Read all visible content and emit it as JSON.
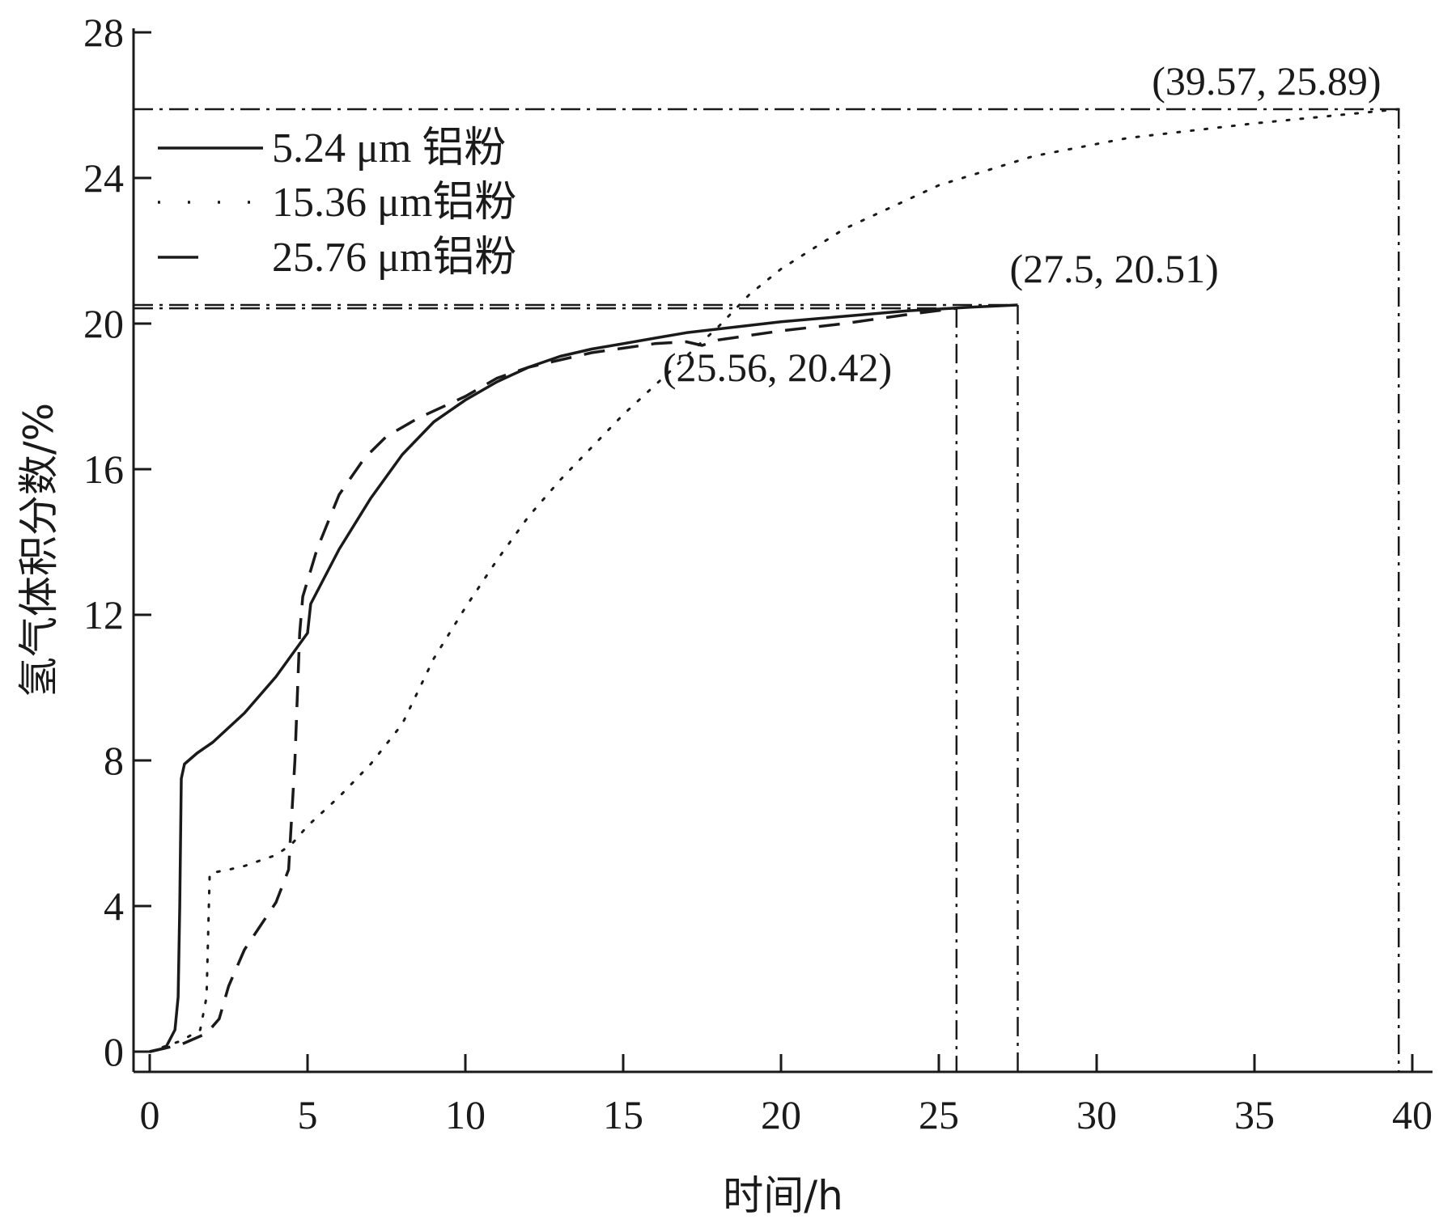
{
  "chart_data": {
    "type": "line",
    "xlabel": "时间/h",
    "ylabel": "氢气体积分数/%",
    "xlim": [
      0,
      40
    ],
    "ylim": [
      0,
      28
    ],
    "xticks": [
      0,
      5,
      10,
      15,
      20,
      25,
      30,
      35,
      40
    ],
    "yticks": [
      0,
      4,
      8,
      12,
      16,
      20,
      24,
      28
    ],
    "grid": false,
    "legend_position": "top-left",
    "series": [
      {
        "name": "5.24 μm 铝粉",
        "style": "solid",
        "points": [
          [
            0,
            0
          ],
          [
            0.5,
            0.1
          ],
          [
            0.8,
            0.6
          ],
          [
            0.9,
            1.5
          ],
          [
            0.95,
            4
          ],
          [
            1.0,
            7.5
          ],
          [
            1.1,
            7.9
          ],
          [
            1.5,
            8.2
          ],
          [
            2,
            8.5
          ],
          [
            3,
            9.3
          ],
          [
            4,
            10.3
          ],
          [
            5,
            11.5
          ],
          [
            5.1,
            12.3
          ],
          [
            6,
            13.8
          ],
          [
            7,
            15.2
          ],
          [
            8,
            16.4
          ],
          [
            9,
            17.3
          ],
          [
            10,
            17.9
          ],
          [
            11,
            18.4
          ],
          [
            12,
            18.8
          ],
          [
            13,
            19.1
          ],
          [
            14,
            19.3
          ],
          [
            15,
            19.45
          ],
          [
            16,
            19.6
          ],
          [
            17,
            19.75
          ],
          [
            18,
            19.85
          ],
          [
            19,
            19.95
          ],
          [
            20,
            20.05
          ],
          [
            22,
            20.2
          ],
          [
            24,
            20.35
          ],
          [
            26,
            20.45
          ],
          [
            27.5,
            20.51
          ]
        ]
      },
      {
        "name": "15.36 μm铝粉",
        "style": "dotted",
        "points": [
          [
            0,
            0
          ],
          [
            1,
            0.3
          ],
          [
            1.6,
            0.6
          ],
          [
            1.8,
            1.5
          ],
          [
            1.9,
            4.9
          ],
          [
            2.5,
            5.0
          ],
          [
            3,
            5.1
          ],
          [
            4,
            5.4
          ],
          [
            4.5,
            5.7
          ],
          [
            5,
            6.2
          ],
          [
            6,
            7.0
          ],
          [
            7,
            7.9
          ],
          [
            8,
            9.0
          ],
          [
            9,
            10.8
          ],
          [
            10,
            12.2
          ],
          [
            11,
            13.5
          ],
          [
            12,
            14.7
          ],
          [
            13,
            15.7
          ],
          [
            14,
            16.6
          ],
          [
            15,
            17.5
          ],
          [
            16,
            18.3
          ],
          [
            17,
            19.1
          ],
          [
            18,
            19.9
          ],
          [
            19,
            20.8
          ],
          [
            20,
            21.5
          ],
          [
            22,
            22.6
          ],
          [
            25,
            23.8
          ],
          [
            28,
            24.6
          ],
          [
            31,
            25.1
          ],
          [
            35,
            25.5
          ],
          [
            39.57,
            25.89
          ]
        ]
      },
      {
        "name": "25.76 μm铝粉",
        "style": "dashed",
        "points": [
          [
            0,
            0
          ],
          [
            1,
            0.2
          ],
          [
            1.8,
            0.5
          ],
          [
            2.2,
            0.9
          ],
          [
            2.5,
            1.8
          ],
          [
            3,
            2.8
          ],
          [
            4,
            4.1
          ],
          [
            4.4,
            5.0
          ],
          [
            4.6,
            8.0
          ],
          [
            4.75,
            11.5
          ],
          [
            4.85,
            12.5
          ],
          [
            5.3,
            13.8
          ],
          [
            6,
            15.3
          ],
          [
            6.8,
            16.3
          ],
          [
            7.5,
            16.9
          ],
          [
            8.5,
            17.4
          ],
          [
            10,
            18.0
          ],
          [
            11,
            18.5
          ],
          [
            12,
            18.8
          ],
          [
            14,
            19.2
          ],
          [
            16,
            19.45
          ],
          [
            17,
            19.5
          ],
          [
            17.5,
            19.4
          ],
          [
            18,
            19.55
          ],
          [
            20,
            19.8
          ],
          [
            22,
            20.0
          ],
          [
            24,
            20.25
          ],
          [
            25.56,
            20.42
          ]
        ]
      }
    ],
    "reference_lines": [
      {
        "x": 39.57,
        "y": 25.89,
        "label": "(39.57, 25.89)"
      },
      {
        "x": 27.5,
        "y": 20.51,
        "label": "(27.5, 20.51)"
      },
      {
        "x": 25.56,
        "y": 20.42,
        "label": "(25.56, 20.42)"
      }
    ]
  }
}
